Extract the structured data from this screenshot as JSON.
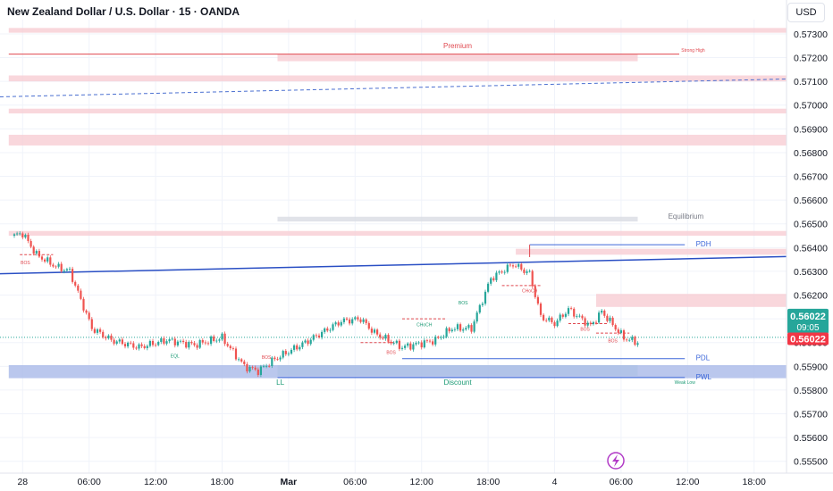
{
  "header": {
    "title": "New Zealand Dollar / U.S. Dollar · 15 · OANDA",
    "currency": "USD"
  },
  "colors": {
    "up": "#26a69a",
    "down": "#ef5350",
    "supply_zone": "#f7cdd3",
    "demand_zone": "#a9b9e8",
    "equilibrium": "#d9dce3",
    "trend": "#2a4fc4",
    "level": "#3b66d9",
    "label_red": "#e0484f",
    "label_green": "#1a9a74",
    "price_green": "#26a69a",
    "price_red": "#f23645"
  },
  "chart_data": {
    "type": "candlestick",
    "ylim": [
      0.5545,
      0.5736
    ],
    "y_ticks": [
      "0.57300",
      "0.57200",
      "0.57100",
      "0.57000",
      "0.56900",
      "0.56800",
      "0.56700",
      "0.56600",
      "0.56500",
      "0.56400",
      "0.56300",
      "0.56200",
      "0.56100",
      "0.56000",
      "0.55900",
      "0.55800",
      "0.55700",
      "0.55600",
      "0.55500"
    ],
    "x_ticks": [
      {
        "label": "28",
        "t": 3
      },
      {
        "label": "06:00",
        "t": 27
      },
      {
        "label": "12:00",
        "t": 51
      },
      {
        "label": "18:00",
        "t": 75
      },
      {
        "label": "Mar",
        "t": 99
      },
      {
        "label": "06:00",
        "t": 123
      },
      {
        "label": "12:00",
        "t": 147
      },
      {
        "label": "18:00",
        "t": 171
      },
      {
        "label": "4",
        "t": 195
      },
      {
        "label": "06:00",
        "t": 219
      },
      {
        "label": "12:00",
        "t": 243
      },
      {
        "label": "18:00",
        "t": 267
      }
    ],
    "anchors": [
      [
        0,
        0.5645
      ],
      [
        3,
        0.5646
      ],
      [
        8,
        0.5637
      ],
      [
        15,
        0.5632
      ],
      [
        20,
        0.563
      ],
      [
        28,
        0.5606
      ],
      [
        35,
        0.5601
      ],
      [
        45,
        0.5598
      ],
      [
        55,
        0.5601
      ],
      [
        65,
        0.5599
      ],
      [
        75,
        0.5602
      ],
      [
        83,
        0.559
      ],
      [
        88,
        0.5588
      ],
      [
        94,
        0.5593
      ],
      [
        105,
        0.56
      ],
      [
        118,
        0.5609
      ],
      [
        125,
        0.561
      ],
      [
        130,
        0.5604
      ],
      [
        140,
        0.5598
      ],
      [
        152,
        0.5601
      ],
      [
        158,
        0.5606
      ],
      [
        165,
        0.5606
      ],
      [
        172,
        0.5627
      ],
      [
        180,
        0.5633
      ],
      [
        186,
        0.5629
      ],
      [
        190,
        0.5611
      ],
      [
        195,
        0.5608
      ],
      [
        200,
        0.5614
      ],
      [
        208,
        0.5607
      ],
      [
        212,
        0.5613
      ],
      [
        220,
        0.5602
      ],
      [
        225,
        0.56
      ]
    ],
    "zones": [
      {
        "name": "premium-zone-top",
        "type": "supply",
        "y1": 0.57325,
        "y2": 0.57305,
        "t1": -2,
        "t2": 292
      },
      {
        "name": "premium-zone-middle",
        "type": "supply",
        "y1": 0.57215,
        "y2": 0.57185,
        "t1": 95,
        "t2": 225
      },
      {
        "name": "premium-zone-band",
        "type": "supply",
        "y1": 0.57125,
        "y2": 0.571,
        "t1": -2,
        "t2": 292
      },
      {
        "name": "supply-zone-57000",
        "type": "supply",
        "y1": 0.56985,
        "y2": 0.56965,
        "t1": -2,
        "t2": 292
      },
      {
        "name": "supply-zone-56850",
        "type": "supply",
        "y1": 0.56875,
        "y2": 0.5683,
        "t1": -2,
        "t2": 292
      },
      {
        "name": "equilibrium-zone",
        "type": "equilibrium",
        "y1": 0.5653,
        "y2": 0.5651,
        "t1": 95,
        "t2": 225
      },
      {
        "name": "supply-zone-56450",
        "type": "supply",
        "y1": 0.5647,
        "y2": 0.5645,
        "t1": -2,
        "t2": 292
      },
      {
        "name": "supply-zone-pdh",
        "type": "supply",
        "y1": 0.56395,
        "y2": 0.5637,
        "t1": 181,
        "t2": 292
      },
      {
        "name": "supply-zone-right",
        "type": "supply",
        "y1": 0.56205,
        "y2": 0.5615,
        "t1": 210,
        "t2": 292
      },
      {
        "name": "discount-zone",
        "type": "discount",
        "y1": 0.55905,
        "y2": 0.5586,
        "t1": 95,
        "t2": 225
      },
      {
        "name": "demand-zone-pwl",
        "type": "demand",
        "y1": 0.55905,
        "y2": 0.5585,
        "t1": -2,
        "t2": 292
      }
    ],
    "levels": [
      {
        "name": "strong-high-line",
        "y": 0.57215,
        "t1": -2,
        "t2": 240,
        "color": "#e0484f"
      },
      {
        "name": "pdh-line",
        "y": 0.56412,
        "t1": 186,
        "t2": 242,
        "color": "#3b66d9"
      },
      {
        "name": "pdl-line",
        "y": 0.55932,
        "t1": 140,
        "t2": 242,
        "color": "#3b66d9"
      },
      {
        "name": "pwl-line",
        "y": 0.55853,
        "t1": 95,
        "t2": 242,
        "color": "#3b66d9"
      }
    ],
    "trendline": {
      "t1": -2,
      "y1": 0.5629,
      "t2": 292,
      "y2": 0.56362
    },
    "dashed_trend": {
      "t1": -2,
      "y1": 0.57035,
      "t2": 292,
      "y2": 0.5711
    },
    "last_price_line": 0.56022,
    "labels": [
      {
        "name": "premium-label",
        "text": "Premium",
        "t": 160,
        "y": 0.5724,
        "color": "red",
        "size": 8
      },
      {
        "name": "strong-high-label",
        "text": "Strong High",
        "t": 245,
        "y": 0.57225,
        "color": "red",
        "size": 5
      },
      {
        "name": "equilibrium-label",
        "text": "Equilibrium",
        "t": 236,
        "y": 0.56522,
        "color": "gray",
        "size": 8,
        "anchor": "start"
      },
      {
        "name": "pdh-label",
        "text": "PDH",
        "t": 246,
        "y": 0.56405,
        "color": "blue",
        "size": 8,
        "anchor": "start"
      },
      {
        "name": "pdl-label",
        "text": "PDL",
        "t": 246,
        "y": 0.55925,
        "color": "blue",
        "size": 8,
        "anchor": "start"
      },
      {
        "name": "pwl-label",
        "text": "PWL",
        "t": 246,
        "y": 0.55845,
        "color": "blue",
        "size": 8,
        "anchor": "start"
      },
      {
        "name": "weak-low-label",
        "text": "Weak Low",
        "t": 242,
        "y": 0.55826,
        "color": "green",
        "size": 5
      },
      {
        "name": "discount-label",
        "text": "Discount",
        "t": 160,
        "y": 0.55822,
        "color": "green",
        "size": 8
      },
      {
        "name": "ll-label",
        "text": "LL",
        "t": 96,
        "y": 0.55822,
        "color": "green",
        "size": 8
      },
      {
        "name": "eql-label",
        "text": "EQL",
        "t": 58,
        "y": 0.55936,
        "color": "green",
        "size": 5
      },
      {
        "name": "bos-label-1",
        "text": "BOS",
        "t": 4,
        "y": 0.5633,
        "color": "red",
        "size": 5
      },
      {
        "name": "bos-label-2",
        "text": "BOS",
        "t": 91,
        "y": 0.55931,
        "color": "red",
        "size": 5
      },
      {
        "name": "bos-label-3",
        "text": "BOS",
        "t": 136,
        "y": 0.55952,
        "color": "red",
        "size": 5
      },
      {
        "name": "choch-label-1",
        "text": "CHoCH",
        "t": 148,
        "y": 0.56068,
        "color": "green",
        "size": 5
      },
      {
        "name": "bos-label-4",
        "text": "BOS",
        "t": 162,
        "y": 0.5616,
        "color": "green",
        "size": 5
      },
      {
        "name": "choch-label-2",
        "text": "CHoCH",
        "t": 186,
        "y": 0.56212,
        "color": "red",
        "size": 5
      },
      {
        "name": "bos-label-5",
        "text": "BOS",
        "t": 206,
        "y": 0.5605,
        "color": "red",
        "size": 5
      },
      {
        "name": "bos-label-6",
        "text": "BOS",
        "t": 216,
        "y": 0.56,
        "color": "red",
        "size": 5
      }
    ],
    "price_tags": [
      {
        "name": "last-price-tag",
        "text": "0.56022",
        "sub": "09:05",
        "y": 0.56022,
        "color": "green"
      },
      {
        "name": "current-price-tag",
        "text": "0.56022",
        "y": 0.56016,
        "color": "red"
      }
    ]
  }
}
